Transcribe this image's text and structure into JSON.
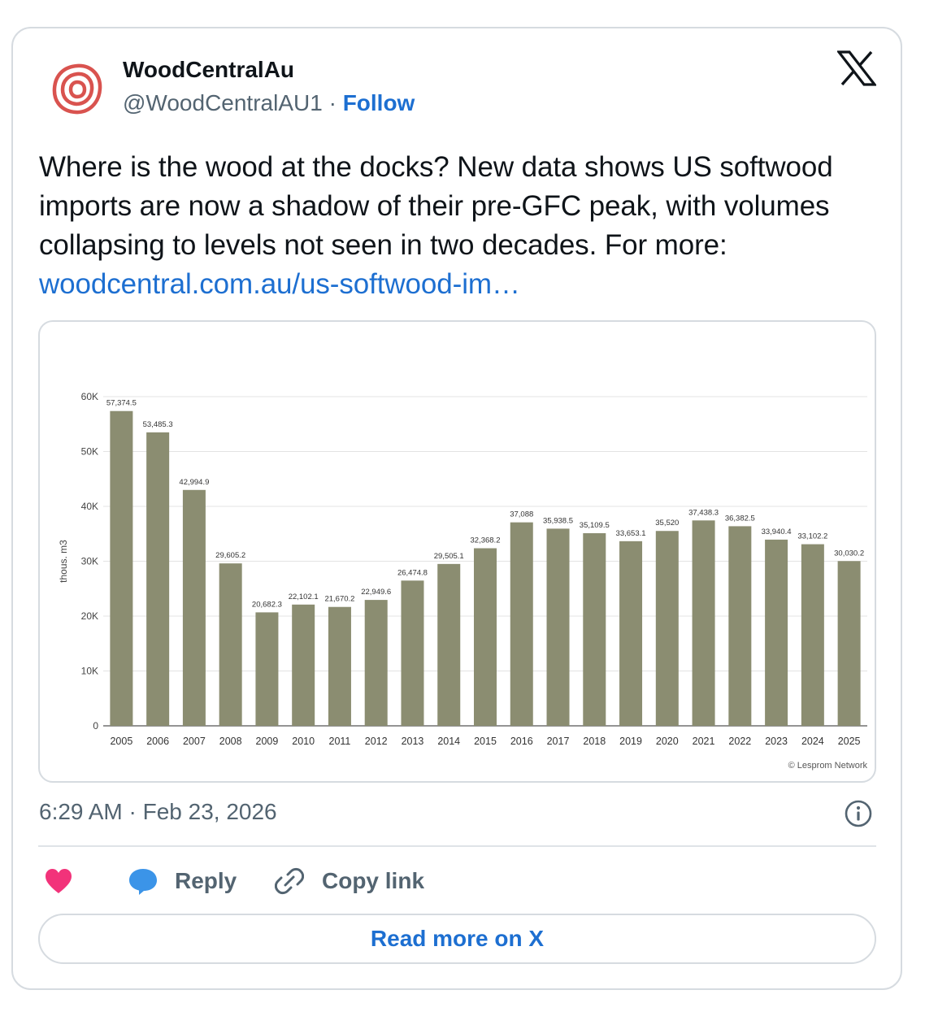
{
  "author": {
    "name": "WoodCentralAu",
    "handle": "@WoodCentralAU1",
    "separator": "·",
    "follow_label": "Follow"
  },
  "tweet": {
    "text": "Where is the wood at the docks? New data shows US softwood imports are now a shadow of their pre-GFC peak, with volumes collapsing to levels not seen in two decades. For more: ",
    "link_text": "woodcentral.com.au/us-softwood-im…"
  },
  "timestamp": "6:29 AM · Feb 23, 2026",
  "actions": {
    "reply_label": "Reply",
    "copy_link_label": "Copy link"
  },
  "read_more_label": "Read more on X",
  "icons": {
    "avatar": "wood-rings-logo-icon",
    "brand": "x-logo-icon",
    "info": "info-icon",
    "like": "heart-icon",
    "reply": "speech-bubble-icon",
    "copy": "link-icon"
  },
  "colors": {
    "link": "#1d6fd1",
    "bar": "#8b8d71",
    "like": "#f2337a",
    "reply": "#3b94e8",
    "avatar": "#d9534f"
  },
  "chart_data": {
    "type": "bar",
    "categories": [
      "2005",
      "2006",
      "2007",
      "2008",
      "2009",
      "2010",
      "2011",
      "2012",
      "2013",
      "2014",
      "2015",
      "2016",
      "2017",
      "2018",
      "2019",
      "2020",
      "2021",
      "2022",
      "2023",
      "2024",
      "2025"
    ],
    "values": [
      57374.5,
      53485.3,
      42994.9,
      29605.2,
      20682.3,
      22102.1,
      21670.2,
      22949.6,
      26474.8,
      29505.1,
      32368.2,
      37088,
      35938.5,
      35109.5,
      33653.1,
      35520,
      37438.3,
      36382.5,
      33940.4,
      33102.2,
      30030.2
    ],
    "value_labels": [
      "57,374.5",
      "53,485.3",
      "42,994.9",
      "29,605.2",
      "20,682.3",
      "22,102.1",
      "21,670.2",
      "22,949.6",
      "26,474.8",
      "29,505.1",
      "32,368.2",
      "37,088",
      "35,938.5",
      "35,109.5",
      "33,653.1",
      "35,520",
      "37,438.3",
      "36,382.5",
      "33,940.4",
      "33,102.2",
      "30,030.2"
    ],
    "ylabel": "thous. m3",
    "ylim": [
      0,
      60000
    ],
    "yticks": [
      0,
      10000,
      20000,
      30000,
      40000,
      50000,
      60000
    ],
    "ytick_labels": [
      "0",
      "10K",
      "20K",
      "30K",
      "40K",
      "50K",
      "60K"
    ],
    "grid": true,
    "credit": "© Lesprom Network"
  }
}
